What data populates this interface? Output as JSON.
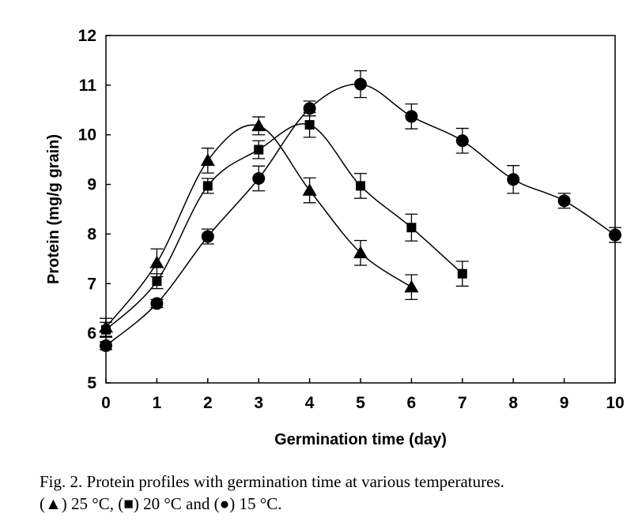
{
  "chart_data": {
    "type": "line",
    "xlabel": "Germination time (day)",
    "ylabel": "Protein (mg/g grain)",
    "xlim": [
      0,
      10
    ],
    "ylim": [
      5,
      12
    ],
    "xticks": [
      "0",
      "1",
      "2",
      "3",
      "4",
      "5",
      "6",
      "7",
      "8",
      "9",
      "10"
    ],
    "yticks": [
      "5",
      "6",
      "7",
      "8",
      "9",
      "10",
      "11",
      "12"
    ],
    "grid": false,
    "series": [
      {
        "name": "25°C",
        "marker": "triangle",
        "x": [
          0,
          1,
          2,
          3,
          4,
          5,
          6
        ],
        "y": [
          6.12,
          7.42,
          9.48,
          10.18,
          8.88,
          7.62,
          6.93
        ],
        "err": [
          0.18,
          0.28,
          0.25,
          0.18,
          0.25,
          0.25,
          0.25
        ]
      },
      {
        "name": "20°C",
        "marker": "square",
        "x": [
          0,
          1,
          2,
          3,
          4,
          5,
          6,
          7
        ],
        "y": [
          6.07,
          7.05,
          8.97,
          9.7,
          10.2,
          8.97,
          8.13,
          7.2
        ],
        "err": [
          0.15,
          0.15,
          0.15,
          0.18,
          0.25,
          0.25,
          0.27,
          0.25
        ]
      },
      {
        "name": "15°C",
        "marker": "circle",
        "x": [
          0,
          1,
          2,
          3,
          4,
          5,
          6,
          7,
          8,
          9,
          10
        ],
        "y": [
          5.75,
          6.6,
          7.95,
          9.12,
          10.53,
          11.02,
          10.37,
          9.88,
          9.1,
          8.67,
          7.98
        ],
        "err": [
          0.08,
          0.08,
          0.15,
          0.25,
          0.15,
          0.27,
          0.25,
          0.25,
          0.28,
          0.15,
          0.15
        ]
      }
    ]
  },
  "caption": {
    "line1": "Fig. 2.  Protein profiles with germination time at various temperatures.",
    "line2_parts": [
      "(",
      "▲",
      ") 25 °C, (",
      "■",
      ") 20 °C and (",
      "●",
      ") 15 °C."
    ]
  }
}
